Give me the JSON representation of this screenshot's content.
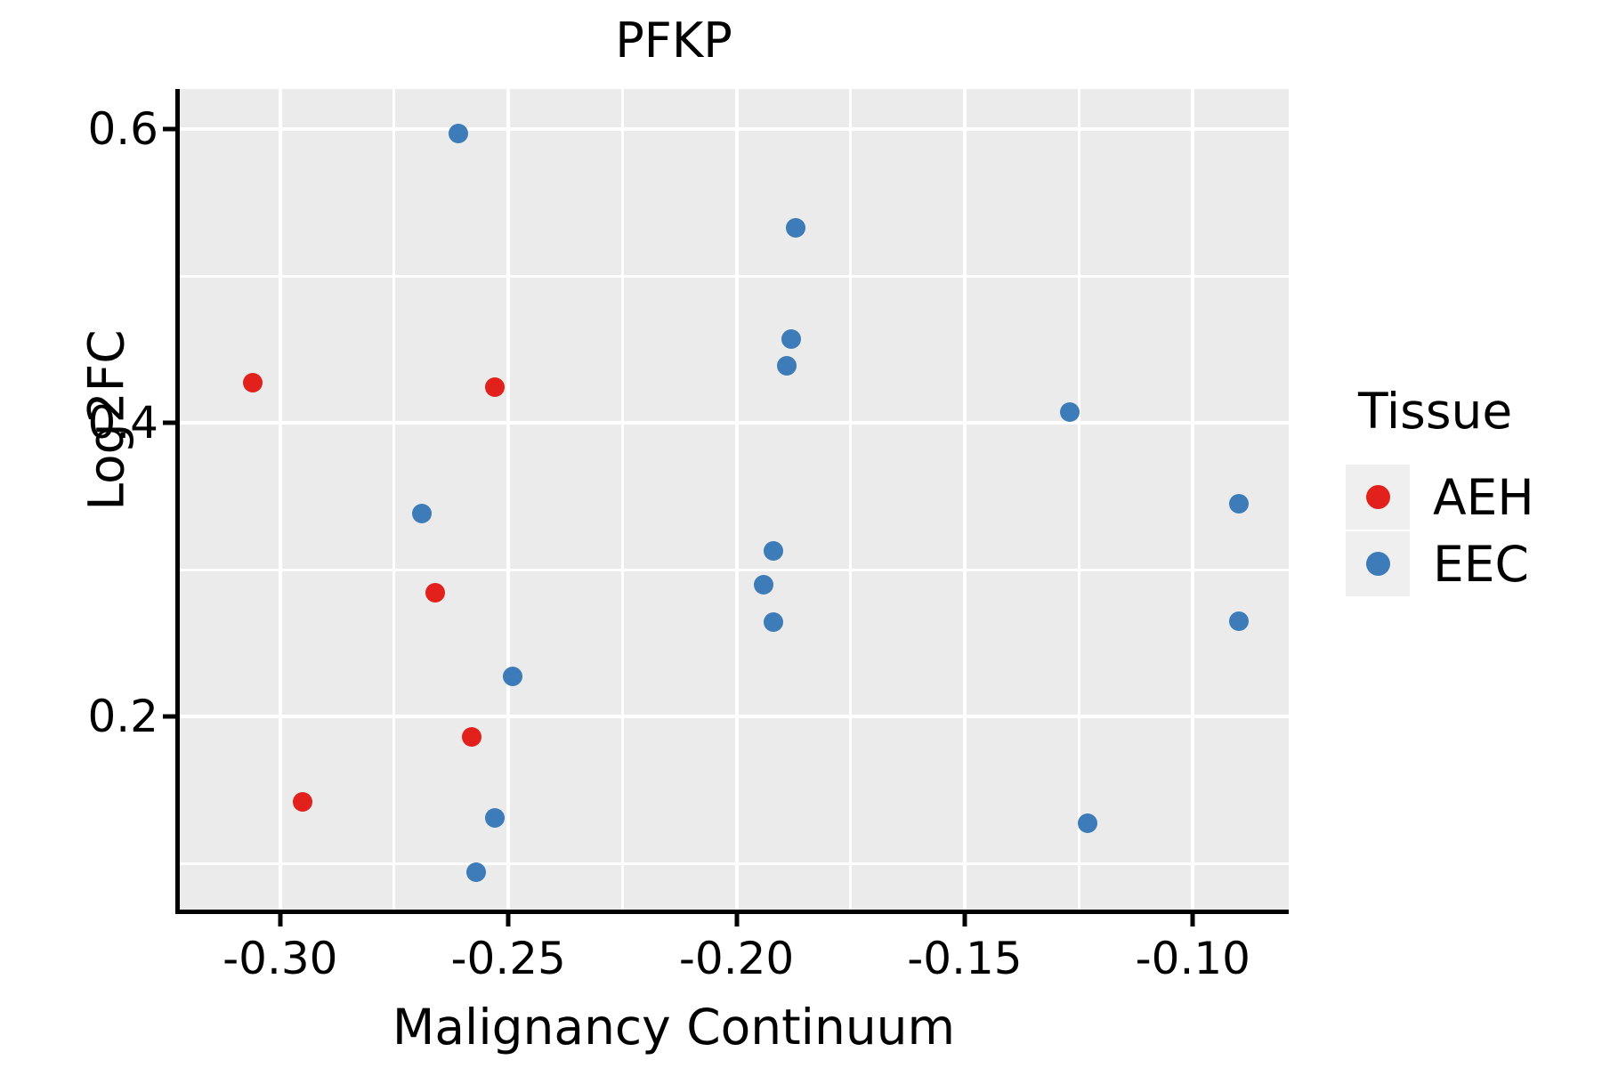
{
  "chart": {
    "title": "PFKP",
    "xlabel": "Malignancy Continuum",
    "ylabel": "Log2FC"
  },
  "colors": {
    "panel_background": "#ebebeb",
    "gridline": "#ffffff",
    "axis": "#000000",
    "aeh_red": "#e3211c",
    "eec_blue": "#3d7cb8",
    "legend_key_background": "#efefef"
  },
  "axes": {
    "x": {
      "min": -0.322,
      "max": -0.079,
      "major_ticks": [
        -0.3,
        -0.25,
        -0.2,
        -0.15,
        -0.1
      ],
      "tick_labels": [
        "-0.30",
        "-0.25",
        "-0.20",
        "-0.15",
        "-0.10"
      ],
      "minor_gridlines": [
        -0.275,
        -0.225,
        -0.175,
        -0.125
      ]
    },
    "y": {
      "min": 0.0685,
      "max": 0.6273,
      "major_ticks": [
        0.6,
        0.4,
        0.2
      ],
      "tick_labels": [
        "0.6",
        "0.4",
        "0.2"
      ],
      "major_gridlines": [
        0.2,
        0.4,
        0.6
      ],
      "minor_gridlines": [
        0.1,
        0.3,
        0.5
      ]
    }
  },
  "legend": {
    "title": "Tissue",
    "items": [
      {
        "label": "AEH",
        "color": "#e3211c"
      },
      {
        "label": "EEC",
        "color": "#3d7cb8"
      }
    ]
  },
  "chart_data": {
    "type": "scatter",
    "title": "PFKP",
    "xlabel": "Malignancy Continuum",
    "ylabel": "Log2FC",
    "xlim": [
      -0.322,
      -0.079
    ],
    "ylim": [
      0.0685,
      0.6273
    ],
    "grid": "white-on-gray (ggplot style), x gridlines every 0.025, y gridlines every 0.1",
    "legend_position": "right",
    "series": [
      {
        "name": "AEH",
        "color": "#e3211c",
        "points": [
          {
            "x": -0.306,
            "y": 0.427
          },
          {
            "x": -0.253,
            "y": 0.424
          },
          {
            "x": -0.266,
            "y": 0.284
          },
          {
            "x": -0.258,
            "y": 0.186
          },
          {
            "x": -0.295,
            "y": 0.142
          }
        ]
      },
      {
        "name": "EEC",
        "color": "#3d7cb8",
        "points": [
          {
            "x": -0.261,
            "y": 0.597
          },
          {
            "x": -0.187,
            "y": 0.533
          },
          {
            "x": -0.188,
            "y": 0.457
          },
          {
            "x": -0.189,
            "y": 0.439
          },
          {
            "x": -0.127,
            "y": 0.407
          },
          {
            "x": -0.09,
            "y": 0.345
          },
          {
            "x": -0.269,
            "y": 0.338
          },
          {
            "x": -0.192,
            "y": 0.313
          },
          {
            "x": -0.194,
            "y": 0.29
          },
          {
            "x": -0.09,
            "y": 0.265
          },
          {
            "x": -0.192,
            "y": 0.264
          },
          {
            "x": -0.249,
            "y": 0.227
          },
          {
            "x": -0.253,
            "y": 0.131
          },
          {
            "x": -0.123,
            "y": 0.127
          },
          {
            "x": -0.257,
            "y": 0.094
          }
        ]
      }
    ]
  }
}
